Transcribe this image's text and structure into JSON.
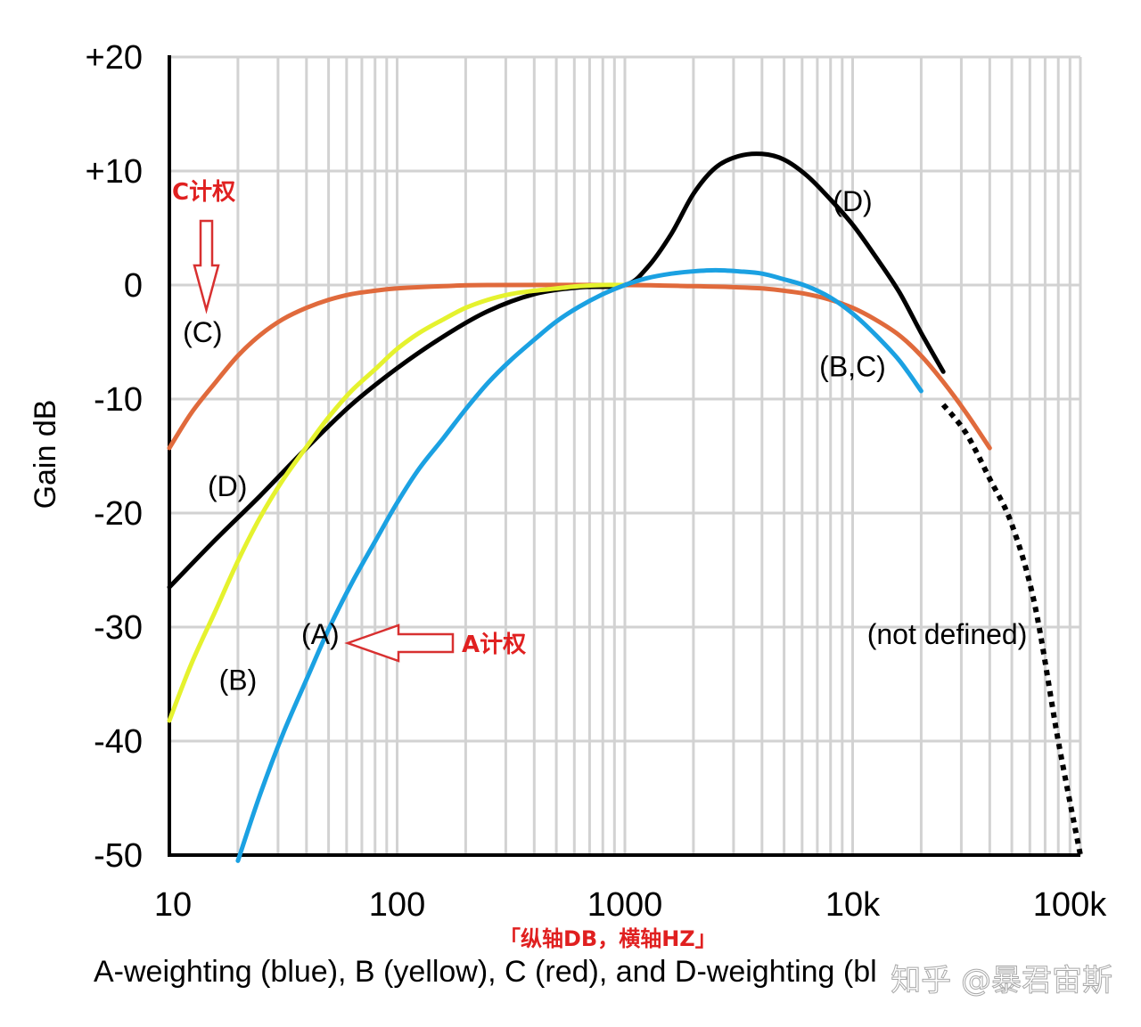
{
  "chart_data": {
    "type": "line",
    "title": "",
    "caption": "A-weighting (blue), B (yellow), C (red), and D-weighting (bl",
    "xlabel": "",
    "ylabel": "Gain dB",
    "x_scale": "log",
    "xlim": [
      10,
      100000
    ],
    "ylim": [
      -50,
      20
    ],
    "grid": true,
    "x_tick_labels": [
      "10",
      "100",
      "1000",
      "10k",
      "100k"
    ],
    "x_tick_values": [
      10,
      100,
      1000,
      10000,
      100000
    ],
    "y_tick_labels": [
      "+20",
      "+10",
      "0",
      "-10",
      "-20",
      "-30",
      "-40",
      "-50"
    ],
    "y_tick_values": [
      20,
      10,
      0,
      -10,
      -20,
      -30,
      -40,
      -50
    ],
    "series": [
      {
        "name": "A",
        "color": "#1ba1e2",
        "points": [
          [
            20,
            -50.5
          ],
          [
            25,
            -44.7
          ],
          [
            31.5,
            -39.4
          ],
          [
            40,
            -34.6
          ],
          [
            50,
            -30.2
          ],
          [
            63,
            -26.2
          ],
          [
            80,
            -22.5
          ],
          [
            100,
            -19.1
          ],
          [
            125,
            -16.1
          ],
          [
            160,
            -13.4
          ],
          [
            200,
            -10.9
          ],
          [
            250,
            -8.6
          ],
          [
            315,
            -6.6
          ],
          [
            400,
            -4.8
          ],
          [
            500,
            -3.2
          ],
          [
            630,
            -1.9
          ],
          [
            800,
            -0.8
          ],
          [
            1000,
            0
          ],
          [
            1250,
            0.6
          ],
          [
            1600,
            1.0
          ],
          [
            2000,
            1.2
          ],
          [
            2500,
            1.3
          ],
          [
            3150,
            1.2
          ],
          [
            4000,
            1.0
          ],
          [
            5000,
            0.5
          ],
          [
            6300,
            -0.1
          ],
          [
            8000,
            -1.1
          ],
          [
            10000,
            -2.5
          ],
          [
            12500,
            -4.3
          ],
          [
            16000,
            -6.6
          ],
          [
            20000,
            -9.3
          ]
        ]
      },
      {
        "name": "B",
        "color": "#e5f22e",
        "points": [
          [
            10,
            -38.2
          ],
          [
            12.5,
            -33.2
          ],
          [
            16,
            -28.5
          ],
          [
            20,
            -24.2
          ],
          [
            25,
            -20.4
          ],
          [
            31.5,
            -17.1
          ],
          [
            40,
            -14.2
          ],
          [
            50,
            -11.6
          ],
          [
            63,
            -9.3
          ],
          [
            80,
            -7.4
          ],
          [
            100,
            -5.6
          ],
          [
            125,
            -4.2
          ],
          [
            160,
            -3.0
          ],
          [
            200,
            -2.0
          ],
          [
            250,
            -1.3
          ],
          [
            315,
            -0.8
          ],
          [
            400,
            -0.5
          ],
          [
            500,
            -0.3
          ],
          [
            630,
            -0.1
          ],
          [
            800,
            0
          ],
          [
            1000,
            0
          ]
        ]
      },
      {
        "name": "C",
        "color": "#e06a3c",
        "points": [
          [
            10,
            -14.3
          ],
          [
            12.5,
            -11.2
          ],
          [
            16,
            -8.5
          ],
          [
            20,
            -6.2
          ],
          [
            25,
            -4.4
          ],
          [
            31.5,
            -3.0
          ],
          [
            40,
            -2.0
          ],
          [
            50,
            -1.3
          ],
          [
            63,
            -0.8
          ],
          [
            80,
            -0.5
          ],
          [
            100,
            -0.3
          ],
          [
            160,
            -0.1
          ],
          [
            250,
            0
          ],
          [
            1000,
            0
          ],
          [
            2000,
            -0.1
          ],
          [
            3150,
            -0.2
          ],
          [
            4000,
            -0.3
          ],
          [
            5000,
            -0.5
          ],
          [
            6300,
            -0.8
          ],
          [
            8000,
            -1.3
          ],
          [
            10000,
            -2.0
          ],
          [
            12500,
            -3.0
          ],
          [
            16000,
            -4.4
          ],
          [
            20000,
            -6.2
          ],
          [
            25000,
            -8.5
          ],
          [
            31500,
            -11.2
          ],
          [
            40000,
            -14.3
          ]
        ]
      },
      {
        "name": "D",
        "color": "#000000",
        "points": [
          [
            10,
            -26.5
          ],
          [
            16,
            -22.3
          ],
          [
            25,
            -18.5
          ],
          [
            40,
            -14.3
          ],
          [
            63,
            -10.5
          ],
          [
            100,
            -7.3
          ],
          [
            160,
            -4.5
          ],
          [
            250,
            -2.3
          ],
          [
            400,
            -0.8
          ],
          [
            630,
            -0.2
          ],
          [
            1000,
            0
          ],
          [
            1250,
            1.5
          ],
          [
            1600,
            4.5
          ],
          [
            2000,
            8.0
          ],
          [
            2500,
            10.3
          ],
          [
            3150,
            11.3
          ],
          [
            4000,
            11.5
          ],
          [
            5000,
            11.0
          ],
          [
            6300,
            9.6
          ],
          [
            8000,
            7.5
          ],
          [
            10000,
            5.3
          ],
          [
            12500,
            2.6
          ],
          [
            16000,
            -0.6
          ],
          [
            20000,
            -4.2
          ],
          [
            25000,
            -7.6
          ]
        ]
      },
      {
        "name": "not defined",
        "color": "#000000",
        "dashed": true,
        "points": [
          [
            25000,
            -10.5
          ],
          [
            31500,
            -13
          ],
          [
            40000,
            -17
          ],
          [
            50000,
            -21
          ],
          [
            63000,
            -28
          ],
          [
            80000,
            -40
          ],
          [
            100000,
            -50
          ]
        ]
      }
    ],
    "annotations": [
      {
        "text": "(D)",
        "x": 10000,
        "y": 6.5
      },
      {
        "text": "(C)",
        "x": 14,
        "y": -5
      },
      {
        "text": "(B,C)",
        "x": 10000,
        "y": -8
      },
      {
        "text": "(D)",
        "x": 18,
        "y": -18.5
      },
      {
        "text": "(A)",
        "x": 46,
        "y": -31.5
      },
      {
        "text": "(B)",
        "x": 20,
        "y": -35.5
      },
      {
        "text": "(not defined)",
        "x": 26000,
        "y": -31.5
      }
    ],
    "notes": [
      {
        "text": "C计权",
        "points_to": "C"
      },
      {
        "text": "A计权",
        "points_to": "A"
      },
      {
        "text": "「纵轴DB，横轴HZ」"
      }
    ]
  },
  "watermark": "知乎 @暴君宙斯"
}
